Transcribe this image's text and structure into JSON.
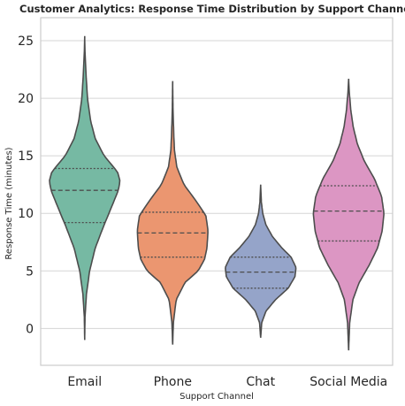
{
  "chart_data": {
    "type": "violin",
    "title": "Customer Analytics: Response Time Distribution by Support Channel",
    "xlabel": "Support Channel",
    "ylabel": "Response Time (minutes)",
    "ylim": [
      -3.2,
      27.0
    ],
    "yticks": [
      0,
      5,
      10,
      15,
      20,
      25
    ],
    "grid": "horizontal",
    "categories": [
      "Email",
      "Phone",
      "Chat",
      "Social Media"
    ],
    "series": [
      {
        "category": "Email",
        "color": "#76b9a3",
        "min": -1.0,
        "max": 25.4,
        "q1": 9.2,
        "median": 12.0,
        "q3": 13.9,
        "profile": [
          [
            -1.0,
            0.0
          ],
          [
            1.0,
            0.01
          ],
          [
            3.0,
            0.05
          ],
          [
            5.0,
            0.14
          ],
          [
            7.0,
            0.3
          ],
          [
            9.0,
            0.55
          ],
          [
            11.0,
            0.82
          ],
          [
            12.0,
            0.95
          ],
          [
            12.8,
            1.0
          ],
          [
            13.6,
            0.93
          ],
          [
            15.0,
            0.55
          ],
          [
            16.5,
            0.3
          ],
          [
            18.0,
            0.17
          ],
          [
            20.0,
            0.08
          ],
          [
            22.0,
            0.04
          ],
          [
            24.0,
            0.01
          ],
          [
            25.4,
            0.0
          ]
        ]
      },
      {
        "category": "Phone",
        "color": "#eb9670",
        "min": -1.4,
        "max": 21.5,
        "q1": 6.2,
        "median": 8.3,
        "q3": 10.1,
        "profile": [
          [
            -1.4,
            0.0
          ],
          [
            0.5,
            0.02
          ],
          [
            2.5,
            0.1
          ],
          [
            4.0,
            0.35
          ],
          [
            5.0,
            0.72
          ],
          [
            6.0,
            0.9
          ],
          [
            7.0,
            0.97
          ],
          [
            8.5,
            1.0
          ],
          [
            9.8,
            0.94
          ],
          [
            11.0,
            0.68
          ],
          [
            12.5,
            0.32
          ],
          [
            14.0,
            0.12
          ],
          [
            15.5,
            0.05
          ],
          [
            17.0,
            0.03
          ],
          [
            19.0,
            0.01
          ],
          [
            21.5,
            0.0
          ]
        ]
      },
      {
        "category": "Chat",
        "color": "#95a4c9",
        "min": -0.8,
        "max": 12.5,
        "q1": 3.5,
        "median": 4.9,
        "q3": 6.2,
        "profile": [
          [
            -0.8,
            0.0
          ],
          [
            0.5,
            0.03
          ],
          [
            1.5,
            0.15
          ],
          [
            2.5,
            0.42
          ],
          [
            3.5,
            0.78
          ],
          [
            4.5,
            0.97
          ],
          [
            5.3,
            1.0
          ],
          [
            6.2,
            0.86
          ],
          [
            7.0,
            0.6
          ],
          [
            8.0,
            0.33
          ],
          [
            9.0,
            0.15
          ],
          [
            10.0,
            0.06
          ],
          [
            11.0,
            0.02
          ],
          [
            12.5,
            0.0
          ]
        ]
      },
      {
        "category": "Social Media",
        "color": "#dc96c3",
        "min": -1.9,
        "max": 21.7,
        "q1": 7.6,
        "median": 10.2,
        "q3": 12.4,
        "profile": [
          [
            -1.9,
            0.0
          ],
          [
            0.5,
            0.03
          ],
          [
            2.5,
            0.12
          ],
          [
            4.0,
            0.3
          ],
          [
            5.5,
            0.58
          ],
          [
            7.0,
            0.82
          ],
          [
            8.5,
            0.95
          ],
          [
            10.0,
            1.0
          ],
          [
            11.5,
            0.93
          ],
          [
            13.0,
            0.73
          ],
          [
            14.5,
            0.45
          ],
          [
            16.0,
            0.25
          ],
          [
            17.5,
            0.13
          ],
          [
            19.0,
            0.06
          ],
          [
            20.5,
            0.02
          ],
          [
            21.7,
            0.0
          ]
        ]
      }
    ]
  }
}
